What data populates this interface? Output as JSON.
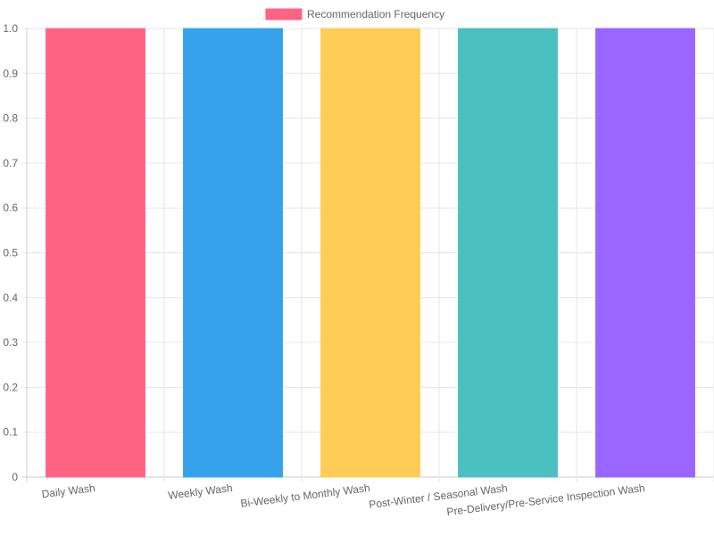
{
  "chart_data": {
    "type": "bar",
    "categories": [
      "Daily Wash",
      "Weekly Wash",
      "Bi-Weekly to Monthly Wash",
      "Post-Winter / Seasonal Wash",
      "Pre-Delivery/Pre-Service Inspection Wash"
    ],
    "series": [
      {
        "name": "Recommendation Frequency",
        "values": [
          1,
          1,
          1,
          1,
          1
        ]
      }
    ],
    "bar_colors": [
      "#ff6384",
      "#36a2eb",
      "#ffcd56",
      "#4bc0c0",
      "#9966ff"
    ],
    "legend_color": "#ff6384",
    "ylim": [
      0,
      1
    ],
    "y_ticks": [
      "0",
      "0.1",
      "0.2",
      "0.3",
      "0.4",
      "0.5",
      "0.6",
      "0.7",
      "0.8",
      "0.9",
      "1.0"
    ],
    "grid": true,
    "legend_position": "top"
  }
}
